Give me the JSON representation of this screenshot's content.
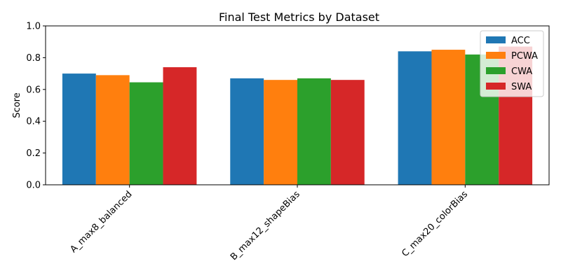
{
  "chart_data": {
    "type": "bar",
    "title": "Final Test Metrics by Dataset",
    "xlabel": "",
    "ylabel": "Score",
    "ylim": [
      0,
      1.0
    ],
    "yticks": [
      "0.0",
      "0.2",
      "0.4",
      "0.6",
      "0.8",
      "1.0"
    ],
    "categories": [
      "A_max8_balanced",
      "B_max12_shapeBias",
      "C_max20_colorBias"
    ],
    "series": [
      {
        "name": "ACC",
        "color": "#1f77b4",
        "values": [
          0.7,
          0.67,
          0.84
        ]
      },
      {
        "name": "PCWA",
        "color": "#ff7f0e",
        "values": [
          0.69,
          0.66,
          0.85
        ]
      },
      {
        "name": "CWA",
        "color": "#2ca02c",
        "values": [
          0.645,
          0.67,
          0.82
        ]
      },
      {
        "name": "SWA",
        "color": "#d62728",
        "values": [
          0.74,
          0.66,
          0.87
        ]
      }
    ],
    "legend_position": "top-right",
    "grid": false,
    "xtick_rotation": 45
  }
}
